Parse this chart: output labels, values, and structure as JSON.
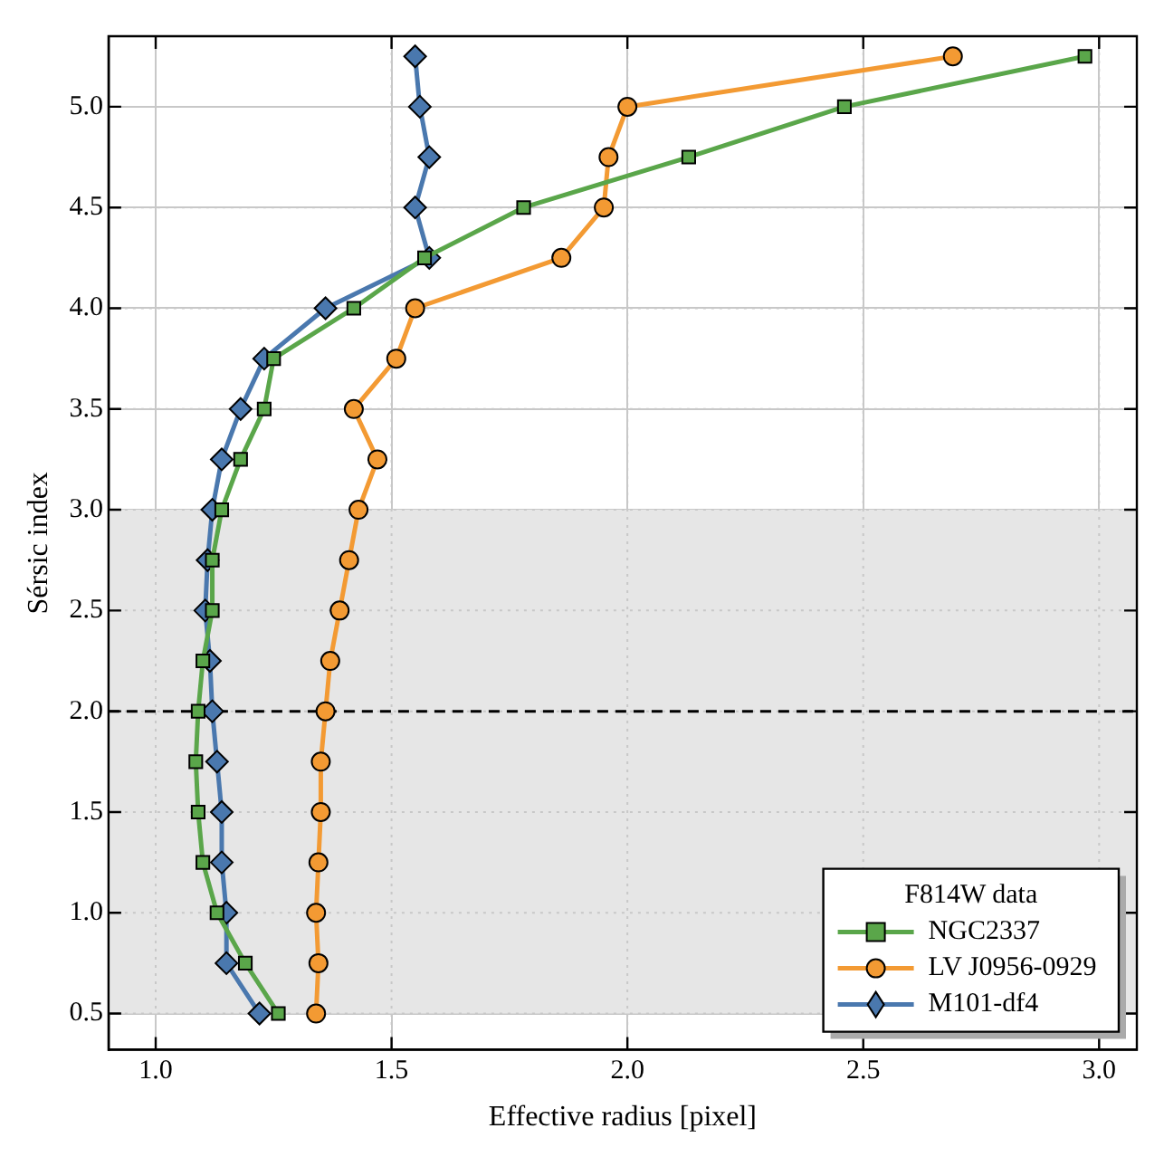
{
  "chart_data": {
    "type": "line",
    "xlabel": "Effective radius [pixel]",
    "ylabel": "Sérsic index",
    "legend_title": "F814W data",
    "legend": "bottom right",
    "grid": true,
    "xlim": [
      0.9,
      3.08
    ],
    "ylim": [
      0.32,
      5.35
    ],
    "xticks": [
      {
        "value": 1,
        "label": "1.0"
      },
      {
        "value": 1.5,
        "label": "1.5"
      },
      {
        "value": 2,
        "label": "2.0"
      },
      {
        "value": 2.5,
        "label": "2.5"
      },
      {
        "value": 3,
        "label": "3.0"
      }
    ],
    "yticks": [
      0.5,
      {
        "value": 1,
        "label": "1.0"
      },
      1.5,
      {
        "value": 2,
        "label": "2.0"
      },
      2.5,
      {
        "value": 3,
        "label": "3.0"
      },
      3.5,
      {
        "value": 4,
        "label": "4.0"
      },
      4.5,
      {
        "value": 5,
        "label": "5.0"
      }
    ],
    "bands": [
      {
        "axis": "y",
        "from": 0.5,
        "to": 3.0,
        "color": "#e6e6e6"
      }
    ],
    "ref_lines": [
      {
        "axis": "y",
        "value": 2.0,
        "color": "#000000",
        "line_style": "dashed"
      }
    ],
    "series": [
      {
        "name": "NGC2337",
        "color": "#5aa64a",
        "marker": "square",
        "x": [
          1.26,
          1.19,
          1.13,
          1.1,
          1.09,
          1.085,
          1.09,
          1.1,
          1.12,
          1.12,
          1.14,
          1.18,
          1.23,
          1.25,
          1.42,
          1.57,
          1.78,
          2.13,
          2.46,
          2.97
        ],
        "values": [
          0.5,
          0.75,
          1.0,
          1.25,
          1.5,
          1.75,
          2.0,
          2.25,
          2.5,
          2.75,
          3.0,
          3.25,
          3.5,
          3.75,
          4.0,
          4.25,
          4.5,
          4.75,
          5.0,
          5.25
        ]
      },
      {
        "name": "LV J0956-0929",
        "color": "#f39a33",
        "marker": "circle",
        "x": [
          1.34,
          1.345,
          1.34,
          1.345,
          1.35,
          1.35,
          1.36,
          1.37,
          1.39,
          1.41,
          1.43,
          1.47,
          1.42,
          1.51,
          1.55,
          1.86,
          1.95,
          1.96,
          2.0,
          2.69
        ],
        "values": [
          0.5,
          0.75,
          1.0,
          1.25,
          1.5,
          1.75,
          2.0,
          2.25,
          2.5,
          2.75,
          3.0,
          3.25,
          3.5,
          3.75,
          4.0,
          4.25,
          4.5,
          4.75,
          5.0,
          5.25
        ]
      },
      {
        "name": "M101-df4",
        "color": "#4a78ae",
        "marker": "diamond",
        "x": [
          1.22,
          1.15,
          1.15,
          1.14,
          1.14,
          1.13,
          1.12,
          1.115,
          1.105,
          1.11,
          1.12,
          1.14,
          1.18,
          1.23,
          1.36,
          1.58,
          1.55,
          1.58,
          1.56,
          1.55
        ],
        "values": [
          0.5,
          0.75,
          1.0,
          1.25,
          1.5,
          1.75,
          2.0,
          2.25,
          2.5,
          2.75,
          3.0,
          3.25,
          3.5,
          3.75,
          4.0,
          4.25,
          4.5,
          4.75,
          5.0,
          5.25
        ]
      }
    ]
  }
}
